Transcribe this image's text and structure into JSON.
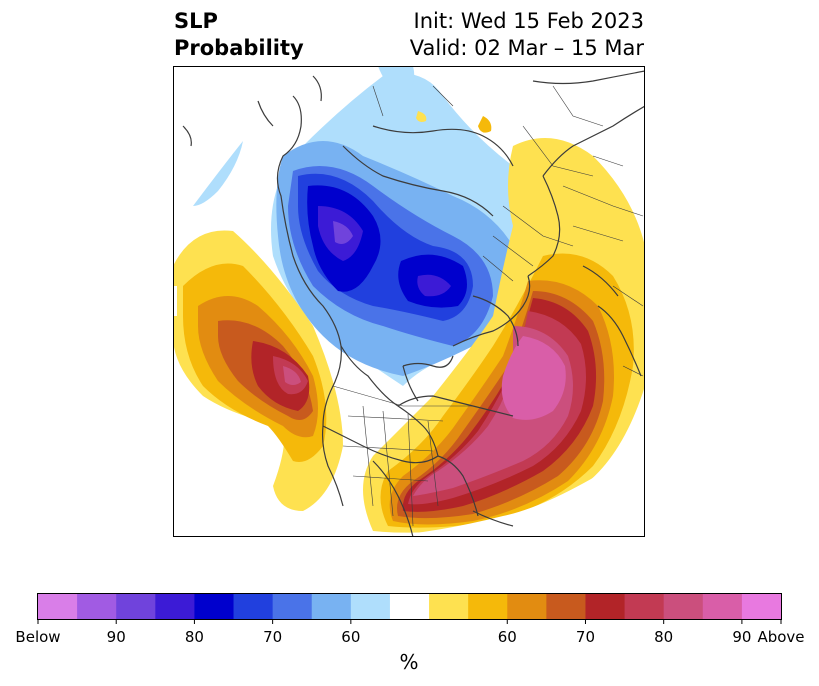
{
  "header": {
    "title_line1": "SLP",
    "title_line2": "Probability",
    "init": "Init: Wed 15 Feb 2023",
    "valid": "Valid: 02 Mar – 15 Mar"
  },
  "colorbar": {
    "unit_label": "%",
    "colors": [
      "#d97ee8",
      "#a15be3",
      "#7043dc",
      "#3c1bd6",
      "#0000cd",
      "#2140de",
      "#4a73e8",
      "#78b2f2",
      "#afdefc",
      "#ffffff",
      "#fee150",
      "#f5b90a",
      "#e28c11",
      "#c85a1e",
      "#b22428",
      "#c23a53",
      "#cb4f7d",
      "#d95ea8",
      "#e879e0"
    ],
    "ticks": [
      {
        "label": "Below",
        "index": 0
      },
      {
        "label": "90",
        "index": 2
      },
      {
        "label": "80",
        "index": 4
      },
      {
        "label": "70",
        "index": 6
      },
      {
        "label": "60",
        "index": 8
      },
      {
        "label": "60",
        "index": 12
      },
      {
        "label": "70",
        "index": 14
      },
      {
        "label": "80",
        "index": 16
      },
      {
        "label": "90",
        "index": 18
      },
      {
        "label": "Above",
        "index": 19
      }
    ]
  }
}
